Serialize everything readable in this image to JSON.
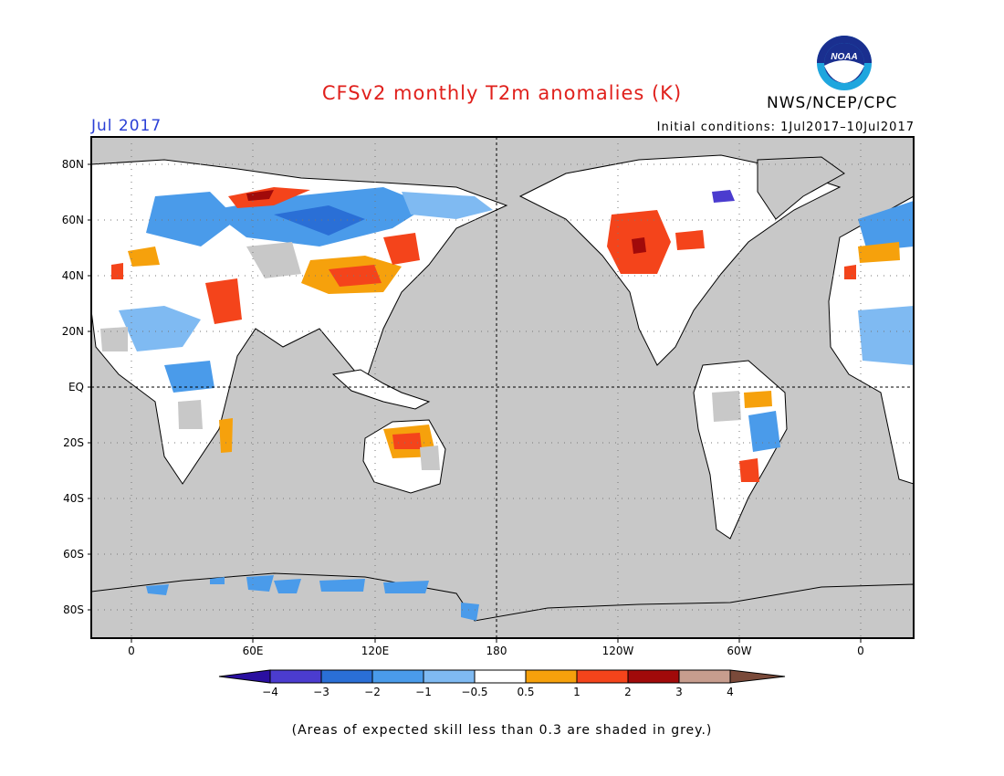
{
  "header": {
    "title": "CFSv2 monthly T2m anomalies (K)",
    "agency": "NWS/NCEP/CPC",
    "logo_text": "NOAA",
    "month": "Jul 2017",
    "initial_conditions": "Initial conditions: 1Jul2017–10Jul2017"
  },
  "map": {
    "lat_labels": [
      "80N",
      "60N",
      "40N",
      "20N",
      "EQ",
      "20S",
      "40S",
      "60S",
      "80S"
    ],
    "lon_labels": [
      "0",
      "60E",
      "120E",
      "180",
      "120W",
      "60W",
      "0"
    ],
    "background_color": "#c8c8c8"
  },
  "colorbar": {
    "labels": [
      "−4",
      "−3",
      "−2",
      "−1",
      "−0.5",
      "0.5",
      "1",
      "2",
      "3",
      "4"
    ],
    "colors": [
      "#2a0fa0",
      "#4b3ccf",
      "#2a6fd6",
      "#4a9bea",
      "#7fbaf2",
      "#ffffff",
      "#f6a10c",
      "#f4441b",
      "#a10a0a",
      "#c79d8e",
      "#7a4a3a"
    ]
  },
  "footnote": "(Areas of expected skill less than 0.3 are shaded in grey.)"
}
